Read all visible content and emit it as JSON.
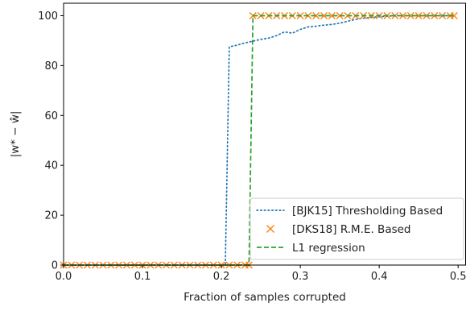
{
  "chart_data": {
    "type": "line",
    "title": "",
    "xlabel": "Fraction of samples corrupted",
    "ylabel": "|w* − ŵ|",
    "xlim": [
      0.0,
      0.51
    ],
    "ylim": [
      0,
      105
    ],
    "xticks": [
      0.0,
      0.1,
      0.2,
      0.3,
      0.4,
      0.5
    ],
    "xtick_labels": [
      "0.0",
      "0.1",
      "0.2",
      "0.3",
      "0.4",
      "0.5"
    ],
    "yticks": [
      0,
      20,
      40,
      60,
      80,
      100
    ],
    "ytick_labels": [
      "0",
      "20",
      "40",
      "60",
      "80",
      "100"
    ],
    "grid": false,
    "legend_position": "bottom-right",
    "series": [
      {
        "name": "[BJK15] Thresholding Based",
        "style": "dotted",
        "marker": "none",
        "color": "#1f77b4",
        "x": [
          0.0,
          0.02,
          0.04,
          0.06,
          0.08,
          0.1,
          0.12,
          0.14,
          0.16,
          0.18,
          0.2,
          0.205,
          0.21,
          0.22,
          0.23,
          0.24,
          0.25,
          0.26,
          0.27,
          0.28,
          0.29,
          0.3,
          0.31,
          0.32,
          0.33,
          0.34,
          0.35,
          0.36,
          0.37,
          0.38,
          0.39,
          0.4,
          0.41,
          0.42,
          0.44,
          0.46,
          0.48,
          0.495
        ],
        "y": [
          0,
          0,
          0,
          0,
          0,
          0,
          0,
          0,
          0,
          0,
          0,
          0,
          87.5,
          88.2,
          89.1,
          89.8,
          90.5,
          91.0,
          92.0,
          93.5,
          93.0,
          94.5,
          95.5,
          95.8,
          96.2,
          96.5,
          97.0,
          97.8,
          98.5,
          99.0,
          99.3,
          99.6,
          99.8,
          100,
          100,
          100,
          100,
          100
        ]
      },
      {
        "name": "[DKS18] R.M.E. Based",
        "style": "none",
        "marker": "x",
        "color": "#ff7f0e",
        "x": [
          0.0,
          0.01,
          0.02,
          0.03,
          0.04,
          0.05,
          0.06,
          0.07,
          0.08,
          0.09,
          0.1,
          0.11,
          0.12,
          0.13,
          0.14,
          0.15,
          0.16,
          0.17,
          0.18,
          0.19,
          0.2,
          0.21,
          0.22,
          0.23,
          0.235,
          0.24,
          0.25,
          0.26,
          0.27,
          0.28,
          0.29,
          0.3,
          0.31,
          0.32,
          0.33,
          0.34,
          0.35,
          0.36,
          0.37,
          0.38,
          0.39,
          0.4,
          0.41,
          0.42,
          0.43,
          0.44,
          0.45,
          0.46,
          0.47,
          0.48,
          0.49,
          0.495
        ],
        "y": [
          0,
          0,
          0,
          0,
          0,
          0,
          0,
          0,
          0,
          0,
          0,
          0,
          0,
          0,
          0,
          0,
          0,
          0,
          0,
          0,
          0,
          0,
          0,
          0,
          0,
          100,
          100,
          100,
          100,
          100,
          100,
          100,
          100,
          100,
          100,
          100,
          100,
          100,
          100,
          100,
          100,
          100,
          100,
          100,
          100,
          100,
          100,
          100,
          100,
          100,
          100,
          100
        ]
      },
      {
        "name": "L1 regression",
        "style": "dashed",
        "marker": "none",
        "color": "#2ca02c",
        "x": [
          0.0,
          0.235,
          0.24,
          0.495
        ],
        "y": [
          0,
          0,
          100,
          100
        ]
      }
    ]
  }
}
